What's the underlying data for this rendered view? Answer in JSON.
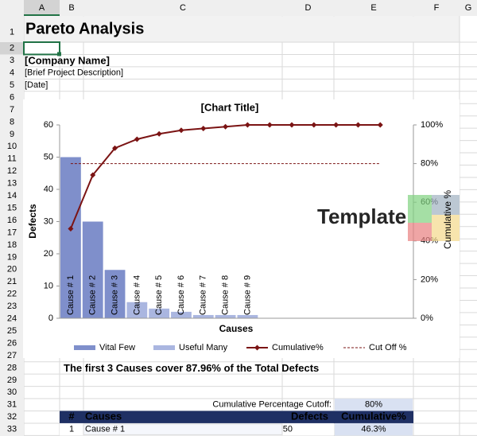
{
  "columns": [
    "A",
    "B",
    "C",
    "D",
    "E",
    "F",
    "G"
  ],
  "rows": [
    1,
    2,
    3,
    4,
    5,
    6,
    7,
    8,
    9,
    10,
    11,
    12,
    13,
    14,
    15,
    16,
    17,
    18,
    19,
    20,
    21,
    22,
    23,
    24,
    25,
    26,
    27,
    28,
    29,
    30,
    31,
    32,
    33
  ],
  "sheet": {
    "title": "Pareto Analysis",
    "company": "[Company Name]",
    "description": "[Brief Project Description]",
    "date": "[Date]",
    "summary": "The first 3 Causes cover 87.96% of the Total Defects",
    "cutoff_label": "Cumulative Percentage Cutoff:",
    "cutoff_value": "80%",
    "watermark": "Template",
    "table": {
      "header": [
        "#",
        "Causes",
        "Defects",
        "Cumulative%"
      ],
      "rows": [
        [
          1,
          "Cause # 1",
          50,
          "46.3%"
        ]
      ]
    }
  },
  "chart_data": {
    "type": "pareto",
    "title": "[Chart Title]",
    "x_label": "Causes",
    "y_label": "Defects",
    "y2_label": "Cumulative %",
    "categories": [
      "Cause # 1",
      "Cause # 2",
      "Cause # 3",
      "Cause # 4",
      "Cause # 5",
      "Cause # 6",
      "Cause # 7",
      "Cause # 8",
      "Cause # 9",
      null,
      null,
      null,
      null,
      null,
      null,
      null
    ],
    "series": [
      {
        "name": "Vital Few",
        "kind": "bar",
        "color": "#7f8fcb",
        "values": [
          50,
          30,
          15,
          null,
          null,
          null,
          null,
          null,
          null,
          null,
          null,
          null,
          null,
          null,
          null,
          null
        ]
      },
      {
        "name": "Useful Many",
        "kind": "bar",
        "color": "#aab6e0",
        "values": [
          null,
          null,
          null,
          5,
          3,
          2,
          1,
          1,
          1,
          null,
          null,
          null,
          null,
          null,
          null,
          null
        ]
      },
      {
        "name": "Cumulative%",
        "kind": "line",
        "axis": "y2",
        "color": "#7b1414",
        "marker": "diamond",
        "values": [
          46.3,
          74.07,
          87.96,
          92.59,
          95.37,
          97.22,
          98.15,
          99.07,
          100,
          100,
          100,
          100,
          100,
          100,
          100,
          null
        ]
      },
      {
        "name": "Cut Off %",
        "kind": "line",
        "axis": "y2",
        "color": "#7b1414",
        "dashed": true,
        "values": [
          80,
          80,
          80,
          80,
          80,
          80,
          80,
          80,
          80,
          80,
          80,
          80,
          80,
          80,
          80,
          null
        ]
      }
    ],
    "ylim": [
      0,
      60
    ],
    "yticks": [
      0,
      10,
      20,
      30,
      40,
      50,
      60
    ],
    "y2lim": [
      0,
      100
    ],
    "y2ticks": [
      {
        "value": 0,
        "label": "0%"
      },
      {
        "value": 20,
        "label": "20%"
      },
      {
        "value": 40,
        "label": "40%"
      },
      {
        "value": 60,
        "label": "60%"
      },
      {
        "value": 80,
        "label": "80%"
      },
      {
        "value": 100,
        "label": "100%"
      }
    ],
    "grid": false,
    "legend": "bottom"
  }
}
